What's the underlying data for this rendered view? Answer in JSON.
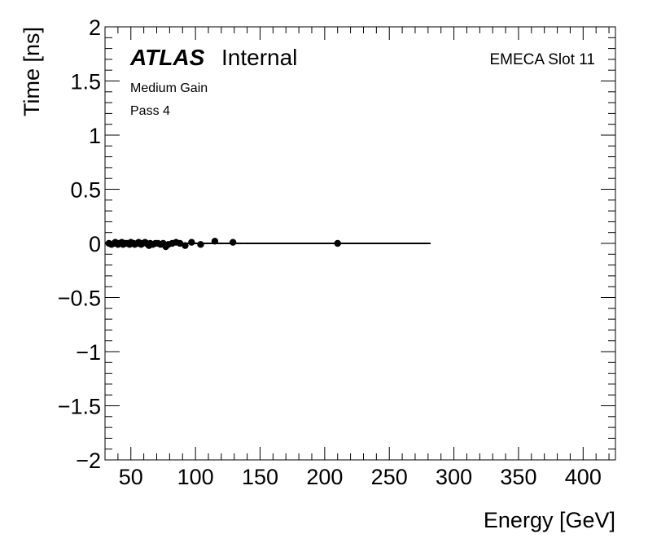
{
  "chart_data": {
    "type": "scatter",
    "xlabel": "Energy [GeV]",
    "ylabel": "Time [ns]",
    "xlim": [
      30,
      425
    ],
    "ylim": [
      -2,
      2
    ],
    "x_ticks": [
      50,
      100,
      150,
      200,
      250,
      300,
      350,
      400
    ],
    "y_ticks": [
      -2,
      -1.5,
      -1,
      -0.5,
      0,
      0.5,
      1,
      1.5,
      2
    ],
    "y_tick_labels": [
      "−2",
      "−1.5",
      "−1",
      "−0.5",
      "0",
      "0.5",
      "1",
      "1.5",
      "2"
    ],
    "grid": false,
    "annotations": {
      "atlas": "ATLAS",
      "internal": "Internal",
      "gain": "Medium Gain",
      "pass": "Pass 4",
      "slot": "EMECA Slot 11"
    },
    "points": [
      {
        "x": 33,
        "y": 0.0
      },
      {
        "x": 35,
        "y": -0.01
      },
      {
        "x": 37,
        "y": 0.0
      },
      {
        "x": 38,
        "y": 0.01
      },
      {
        "x": 40,
        "y": -0.01
      },
      {
        "x": 41,
        "y": 0.0
      },
      {
        "x": 43,
        "y": 0.01
      },
      {
        "x": 44,
        "y": -0.01
      },
      {
        "x": 46,
        "y": 0.0
      },
      {
        "x": 47,
        "y": 0.0
      },
      {
        "x": 49,
        "y": -0.01
      },
      {
        "x": 50,
        "y": 0.01
      },
      {
        "x": 52,
        "y": 0.0
      },
      {
        "x": 53,
        "y": -0.01
      },
      {
        "x": 55,
        "y": 0.0
      },
      {
        "x": 56,
        "y": 0.01
      },
      {
        "x": 58,
        "y": -0.01
      },
      {
        "x": 59,
        "y": 0.0
      },
      {
        "x": 61,
        "y": 0.01
      },
      {
        "x": 62,
        "y": 0.0
      },
      {
        "x": 64,
        "y": -0.02
      },
      {
        "x": 65,
        "y": 0.0
      },
      {
        "x": 67,
        "y": -0.01
      },
      {
        "x": 69,
        "y": 0.0
      },
      {
        "x": 71,
        "y": 0.0
      },
      {
        "x": 73,
        "y": -0.01
      },
      {
        "x": 75,
        "y": 0.0
      },
      {
        "x": 77,
        "y": -0.03
      },
      {
        "x": 79,
        "y": -0.01
      },
      {
        "x": 82,
        "y": 0.0
      },
      {
        "x": 85,
        "y": 0.01
      },
      {
        "x": 88,
        "y": 0.0
      },
      {
        "x": 92,
        "y": -0.02
      },
      {
        "x": 97,
        "y": 0.01
      },
      {
        "x": 104,
        "y": -0.01
      },
      {
        "x": 115,
        "y": 0.02
      },
      {
        "x": 129,
        "y": 0.01
      },
      {
        "x": 210,
        "y": 0.0
      }
    ],
    "fit_segments": [
      {
        "x0": 30,
        "x1": 138,
        "y": 0.0
      },
      {
        "x0": 138,
        "x1": 282,
        "y": 0.0
      }
    ]
  }
}
